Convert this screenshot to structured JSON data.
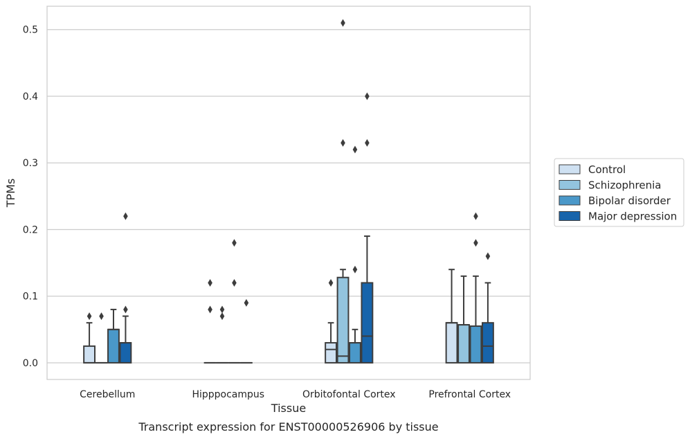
{
  "chart_data": {
    "type": "box",
    "title": "",
    "caption": "Transcript expression for ENST00000526906 by tissue",
    "xlabel": "Tissue",
    "ylabel": "TPMs",
    "ylim": [
      -0.025,
      0.535
    ],
    "yticks": [
      0.0,
      0.1,
      0.2,
      0.3,
      0.4,
      0.5
    ],
    "ytick_labels": [
      "0.0",
      "0.1",
      "0.2",
      "0.3",
      "0.4",
      "0.5"
    ],
    "grid": "horizontal",
    "legend_position": "right",
    "categories": [
      "Cerebellum",
      "Hipppocampus",
      "Orbitofontal Cortex",
      "Prefrontal Cortex"
    ],
    "series": [
      {
        "name": "Control",
        "color": "#cfe1f2",
        "boxes": [
          {
            "q1": 0.0,
            "median": 0.0,
            "q3": 0.025,
            "whislo": 0.0,
            "whishi": 0.06,
            "fliers": [
              0.07
            ]
          },
          {
            "q1": 0.0,
            "median": 0.0,
            "q3": 0.0,
            "whislo": 0.0,
            "whishi": 0.0,
            "fliers": [
              0.08,
              0.12
            ]
          },
          {
            "q1": 0.0,
            "median": 0.02,
            "q3": 0.03,
            "whislo": 0.0,
            "whishi": 0.06,
            "fliers": [
              0.12
            ]
          },
          {
            "q1": 0.0,
            "median": 0.06,
            "q3": 0.06,
            "whislo": 0.0,
            "whishi": 0.14,
            "fliers": []
          }
        ]
      },
      {
        "name": "Schizophrenia",
        "color": "#93c4de",
        "boxes": [
          {
            "q1": 0.0,
            "median": 0.0,
            "q3": 0.0,
            "whislo": 0.0,
            "whishi": 0.0,
            "fliers": [
              0.07
            ]
          },
          {
            "q1": 0.0,
            "median": 0.0,
            "q3": 0.0,
            "whislo": 0.0,
            "whishi": 0.0,
            "fliers": [
              0.07,
              0.08
            ]
          },
          {
            "q1": 0.0,
            "median": 0.01,
            "q3": 0.128,
            "whislo": 0.0,
            "whishi": 0.14,
            "fliers": [
              0.33,
              0.51
            ]
          },
          {
            "q1": 0.0,
            "median": 0.057,
            "q3": 0.057,
            "whislo": 0.0,
            "whishi": 0.13,
            "fliers": []
          }
        ]
      },
      {
        "name": "Bipolar disorder",
        "color": "#4a98c9",
        "boxes": [
          {
            "q1": 0.0,
            "median": 0.05,
            "q3": 0.05,
            "whislo": 0.0,
            "whishi": 0.08,
            "fliers": []
          },
          {
            "q1": 0.0,
            "median": 0.0,
            "q3": 0.0,
            "whislo": 0.0,
            "whishi": 0.0,
            "fliers": [
              0.12,
              0.18
            ]
          },
          {
            "q1": 0.0,
            "median": 0.03,
            "q3": 0.03,
            "whislo": 0.0,
            "whishi": 0.05,
            "fliers": [
              0.14,
              0.32
            ]
          },
          {
            "q1": 0.0,
            "median": 0.055,
            "q3": 0.055,
            "whislo": 0.0,
            "whishi": 0.13,
            "fliers": [
              0.18,
              0.22
            ]
          }
        ]
      },
      {
        "name": "Major depression",
        "color": "#1764ab",
        "boxes": [
          {
            "q1": 0.0,
            "median": 0.03,
            "q3": 0.03,
            "whislo": 0.0,
            "whishi": 0.07,
            "fliers": [
              0.08,
              0.22
            ]
          },
          {
            "q1": 0.0,
            "median": 0.0,
            "q3": 0.0,
            "whislo": 0.0,
            "whishi": 0.0,
            "fliers": [
              0.09
            ]
          },
          {
            "q1": 0.0,
            "median": 0.04,
            "q3": 0.12,
            "whislo": 0.0,
            "whishi": 0.19,
            "fliers": [
              0.33,
              0.4
            ]
          },
          {
            "q1": 0.0,
            "median": 0.025,
            "q3": 0.06,
            "whislo": 0.0,
            "whishi": 0.12,
            "fliers": [
              0.16
            ]
          }
        ]
      }
    ]
  }
}
